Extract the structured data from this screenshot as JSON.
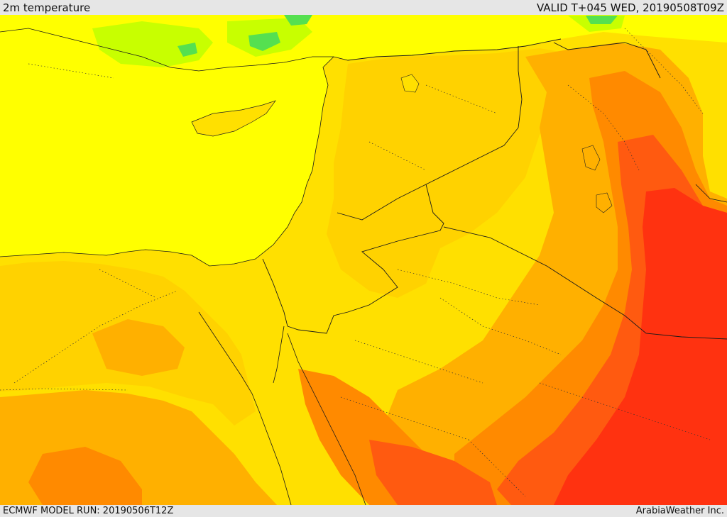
{
  "header": {
    "title": "2m temperature",
    "valid_time": "VALID T+045 WED, 20190508T09Z"
  },
  "footer": {
    "model_run": "ECMWF MODEL RUN: 20190506T12Z",
    "provider": "ArabiaWeather Inc."
  },
  "colors": {
    "sea": "#ffff00",
    "warm_yellow": "#ffe000",
    "gold": "#ffd000",
    "light_orange": "#ffb000",
    "orange": "#ff8c00",
    "dark_orange": "#ff6a00",
    "red_orange": "#ff4a10",
    "red": "#ff3010",
    "lime": "#aaff00",
    "green": "#33e060"
  }
}
